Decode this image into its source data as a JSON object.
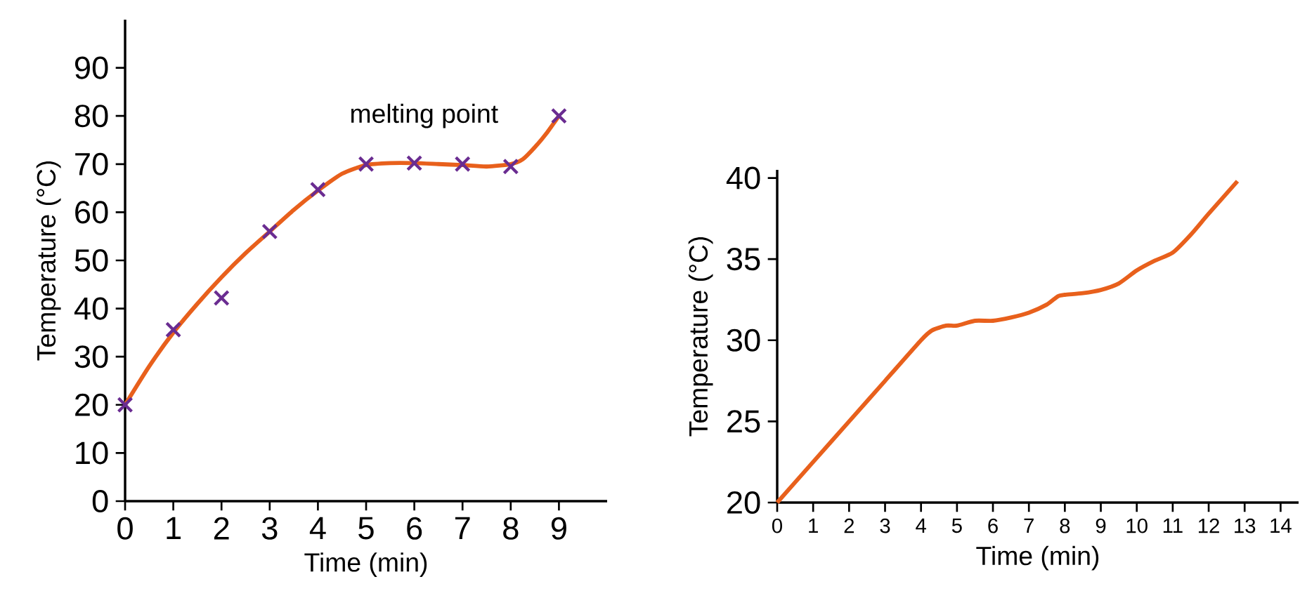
{
  "chart_data": [
    {
      "type": "scatter",
      "xlabel": "Time (min)",
      "ylabel": "Temperature (°C)",
      "xlim": [
        0,
        10
      ],
      "ylim": [
        0,
        100
      ],
      "xticks": [
        0,
        1,
        2,
        3,
        4,
        5,
        6,
        7,
        8,
        9
      ],
      "yticks": [
        0,
        10,
        20,
        30,
        40,
        50,
        60,
        70,
        80,
        90
      ],
      "annotations": [
        "melting point"
      ],
      "series": [
        {
          "type": "line",
          "color": "#e8601c",
          "marker": "none",
          "x": [
            0,
            0.5,
            1,
            1.5,
            2,
            2.5,
            3,
            3.5,
            4,
            4.5,
            5,
            5.5,
            6,
            6.5,
            7,
            7.5,
            8,
            8.25,
            8.5,
            8.75,
            9
          ],
          "values": [
            20,
            28,
            35,
            41,
            46.5,
            51.5,
            56,
            60.5,
            64.5,
            68,
            69.8,
            70.2,
            70.2,
            70,
            69.8,
            69.5,
            70,
            71,
            73.5,
            76.5,
            80
          ]
        },
        {
          "type": "scatter",
          "color": "#6a2c91",
          "marker": "cross",
          "x": [
            0,
            1,
            2,
            3,
            4,
            5,
            6,
            7,
            8,
            9
          ],
          "values": [
            20,
            35.6,
            42.2,
            56,
            64.7,
            70,
            70.2,
            70,
            69.5,
            80
          ]
        }
      ]
    },
    {
      "type": "line",
      "xlabel": "Time (min)",
      "ylabel": "Temperature (°C)",
      "xlim": [
        0,
        14.5
      ],
      "ylim": [
        20,
        40.5
      ],
      "xticks": [
        0,
        1,
        2,
        3,
        4,
        5,
        6,
        7,
        8,
        9,
        10,
        11,
        12,
        13,
        14
      ],
      "yticks": [
        20,
        25,
        30,
        35,
        40
      ],
      "series": [
        {
          "color": "#e8601c",
          "marker": "none",
          "x": [
            0,
            1,
            2,
            3,
            4,
            4.3,
            4.7,
            5,
            5.5,
            6,
            6.5,
            7,
            7.5,
            7.8,
            8,
            8.5,
            9,
            9.5,
            10,
            10.5,
            11,
            11.5,
            12,
            12.8
          ],
          "values": [
            20,
            22.5,
            25,
            27.5,
            30,
            30.6,
            30.9,
            30.9,
            31.2,
            31.2,
            31.4,
            31.7,
            32.2,
            32.7,
            32.8,
            32.9,
            33.1,
            33.5,
            34.3,
            34.9,
            35.4,
            36.5,
            37.8,
            39.8
          ]
        }
      ]
    }
  ]
}
